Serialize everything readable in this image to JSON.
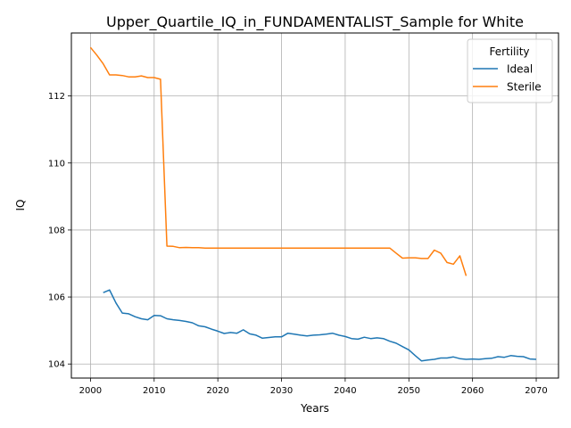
{
  "chart_data": {
    "type": "line",
    "title": "Upper_Quartile_IQ_in_FUNDAMENTALIST_Sample for White",
    "xlabel": "Years",
    "ylabel": "IQ",
    "xlim": [
      1997,
      2073.5
    ],
    "ylim": [
      103.58,
      113.88
    ],
    "xticks": [
      2000,
      2010,
      2020,
      2030,
      2040,
      2050,
      2060,
      2070
    ],
    "yticks": [
      104,
      106,
      108,
      110,
      112
    ],
    "grid": true,
    "legend": {
      "title": "Fertility",
      "placement": "top-right"
    },
    "series": [
      {
        "name": "Ideal",
        "color": "#1f77b4",
        "x": [
          2002,
          2003,
          2004,
          2005,
          2006,
          2007,
          2008,
          2009,
          2010,
          2011,
          2012,
          2013,
          2014,
          2015,
          2016,
          2017,
          2018,
          2019,
          2020,
          2021,
          2022,
          2023,
          2024,
          2025,
          2026,
          2027,
          2028,
          2029,
          2030,
          2031,
          2032,
          2033,
          2034,
          2035,
          2036,
          2037,
          2038,
          2039,
          2040,
          2041,
          2042,
          2043,
          2044,
          2045,
          2046,
          2047,
          2048,
          2049,
          2050,
          2051,
          2052,
          2053,
          2054,
          2055,
          2056,
          2057,
          2058,
          2059,
          2060,
          2061,
          2062,
          2063,
          2064,
          2065,
          2066,
          2067,
          2068,
          2069,
          2070
        ],
        "y": [
          106.13,
          106.21,
          105.82,
          105.52,
          105.5,
          105.41,
          105.35,
          105.32,
          105.45,
          105.44,
          105.35,
          105.32,
          105.3,
          105.27,
          105.23,
          105.14,
          105.11,
          105.04,
          104.98,
          104.91,
          104.94,
          104.92,
          105.02,
          104.9,
          104.86,
          104.77,
          104.79,
          104.81,
          104.81,
          104.92,
          104.89,
          104.86,
          104.84,
          104.86,
          104.87,
          104.89,
          104.92,
          104.86,
          104.82,
          104.76,
          104.74,
          104.8,
          104.76,
          104.78,
          104.76,
          104.68,
          104.62,
          104.52,
          104.42,
          104.25,
          104.09,
          104.12,
          104.14,
          104.18,
          104.18,
          104.21,
          104.16,
          104.14,
          104.15,
          104.14,
          104.16,
          104.17,
          104.22,
          104.2,
          104.25,
          104.23,
          104.22,
          104.15,
          104.14
        ]
      },
      {
        "name": "Sterile",
        "color": "#ff7f0e",
        "x": [
          2000,
          2001,
          2002,
          2003,
          2004,
          2005,
          2006,
          2007,
          2008,
          2009,
          2010,
          2011,
          2012,
          2013,
          2014,
          2015,
          2016,
          2017,
          2018,
          2019,
          2020,
          2021,
          2022,
          2023,
          2024,
          2025,
          2026,
          2027,
          2028,
          2029,
          2030,
          2031,
          2032,
          2033,
          2034,
          2035,
          2036,
          2037,
          2038,
          2039,
          2040,
          2041,
          2042,
          2043,
          2044,
          2045,
          2046,
          2047,
          2048,
          2049,
          2050,
          2051,
          2052,
          2053,
          2054,
          2055,
          2056,
          2057,
          2058,
          2059
        ],
        "y": [
          113.45,
          113.22,
          112.96,
          112.63,
          112.63,
          112.61,
          112.57,
          112.57,
          112.6,
          112.55,
          112.55,
          112.5,
          107.52,
          107.51,
          107.47,
          107.48,
          107.47,
          107.47,
          107.46,
          107.46,
          107.46,
          107.46,
          107.46,
          107.46,
          107.46,
          107.46,
          107.46,
          107.46,
          107.46,
          107.46,
          107.46,
          107.46,
          107.46,
          107.46,
          107.46,
          107.46,
          107.46,
          107.46,
          107.46,
          107.46,
          107.46,
          107.46,
          107.46,
          107.46,
          107.46,
          107.46,
          107.46,
          107.46,
          107.31,
          107.16,
          107.17,
          107.17,
          107.15,
          107.15,
          107.4,
          107.31,
          107.03,
          106.98,
          107.23,
          106.63
        ]
      }
    ]
  }
}
